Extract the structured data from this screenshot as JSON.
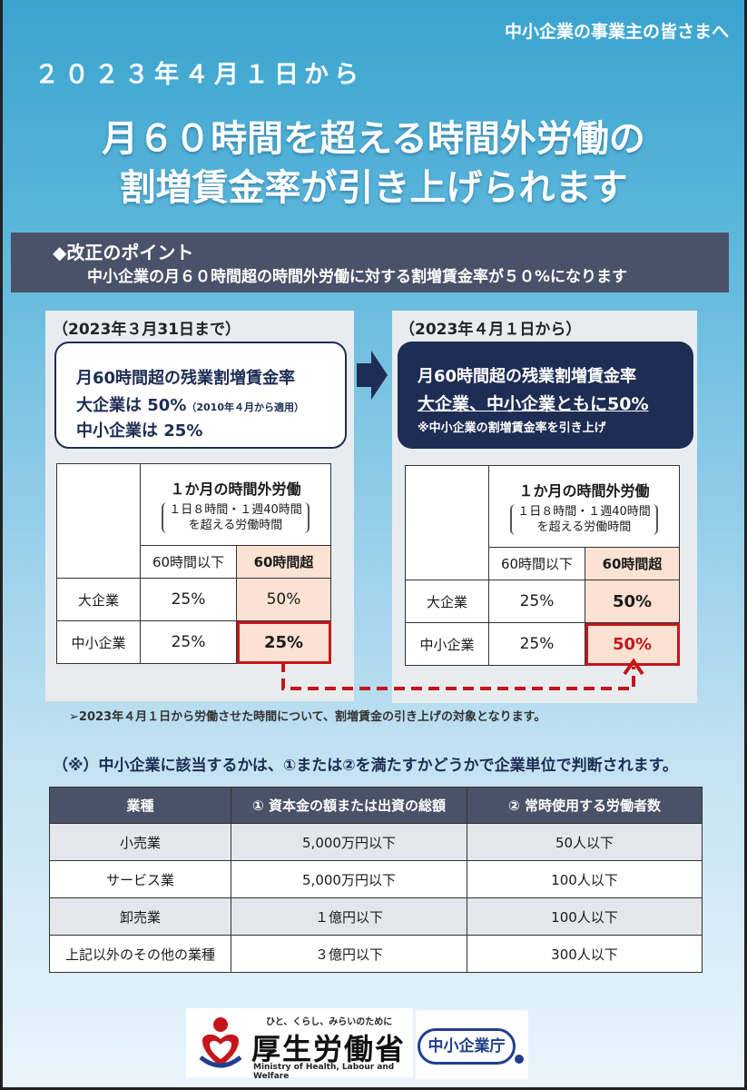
{
  "header": {
    "audience": "中小企業の事業主の皆さまへ",
    "effective_date": "２０２３年４月１日から",
    "title_line1": "月６０時間を超える時間外労働の",
    "title_line2": "割増賃金率が引き上げられます"
  },
  "point": {
    "heading": "◆改正のポイント",
    "summary": "中小企業の月６０時間超の時間外労働に対する割増賃金率が５０%になります"
  },
  "before": {
    "period": "（2023年３月31日まで）",
    "line1": "月60時間超の残業割増賃金率",
    "line2": "大企業は 50%",
    "line2_note": "（2010年４月から適用）",
    "line3": "中小企業は 25%",
    "table": {
      "header_title": "１か月の時間外労働",
      "header_sub1": "１日８時間・１週40時間",
      "header_sub2": "を超える労働時間",
      "col1": "60時間以下",
      "col2": "60時間超",
      "rows": [
        {
          "label": "大企業",
          "v1": "25%",
          "v2": "50%"
        },
        {
          "label": "中小企業",
          "v1": "25%",
          "v2": "25%"
        }
      ]
    }
  },
  "after": {
    "period": "（2023年４月１日から）",
    "line1": "月60時間超の残業割増賃金率",
    "line2": "大企業、中小企業ともに50%",
    "line3": "※中小企業の割増賃金率を引き上げ",
    "table": {
      "header_title": "１か月の時間外労働",
      "header_sub1": "１日８時間・１週40時間",
      "header_sub2": "を超える労働時間",
      "col1": "60時間以下",
      "col2": "60時間超",
      "rows": [
        {
          "label": "大企業",
          "v1": "25%",
          "v2": "50%"
        },
        {
          "label": "中小企業",
          "v1": "25%",
          "v2": "50%"
        }
      ]
    }
  },
  "note_scope": "➢2023年４月１日から労働させた時間について、割増賃金の引き上げの対象となります。",
  "note_sme": "（※）中小企業に該当するかは、①または②を満たすかどうかで企業単位で判断されます。",
  "sme_table": {
    "headers": [
      "業種",
      "① 資本金の額または出資の総額",
      "② 常時使用する労働者数"
    ],
    "rows": [
      [
        "小売業",
        "5,000万円以下",
        "50人以下"
      ],
      [
        "サービス業",
        "5,000万円以下",
        "100人以下"
      ],
      [
        "卸売業",
        "１億円以下",
        "100人以下"
      ],
      [
        "上記以外のその他の業種",
        "３億円以下",
        "300人以下"
      ]
    ]
  },
  "logos": {
    "mhlw_tagline": "ひと、くらし、みらいのために",
    "mhlw_name": "厚生労働省",
    "mhlw_english": "Ministry of Health, Labour and Welfare",
    "sme_agency": "中小企業庁"
  },
  "colors": {
    "navy": "#1e2d54",
    "bar": "#4a5269",
    "highlight_red": "#c4161c",
    "peach": "#fbe2d2"
  }
}
